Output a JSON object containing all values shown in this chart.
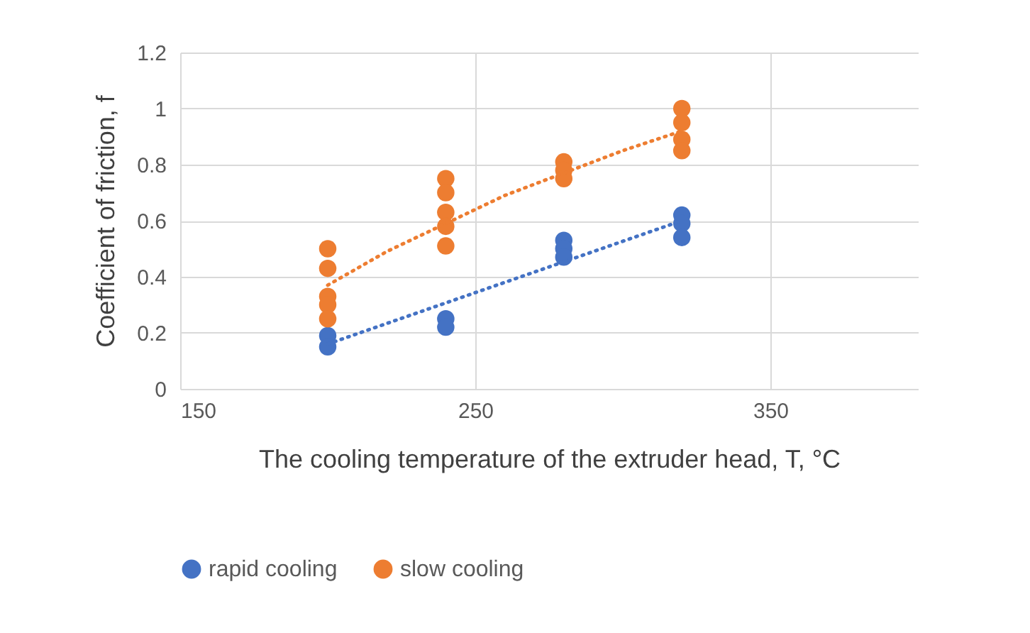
{
  "chart_data": {
    "type": "scatter",
    "xlabel": "The cooling temperature of the extruder head, T, °C",
    "ylabel": "Coefficient of friction, f",
    "xlim": [
      150,
      400
    ],
    "xticks": [
      150,
      250,
      350
    ],
    "ylim": [
      0,
      1.2
    ],
    "yticks": [
      0,
      0.2,
      0.4,
      0.6,
      0.8,
      1,
      1.2
    ],
    "grid": true,
    "legend": "bottom",
    "series": [
      {
        "name": "rapid cooling",
        "color": "#4472c4",
        "marker": "circle",
        "x": [
          200,
          200,
          240,
          240,
          280,
          280,
          280,
          320,
          320,
          320
        ],
        "values": [
          0.19,
          0.15,
          0.25,
          0.22,
          0.53,
          0.5,
          0.47,
          0.62,
          0.59,
          0.54
        ]
      },
      {
        "name": "slow cooling",
        "color": "#ed7d31",
        "marker": "circle",
        "x": [
          200,
          200,
          200,
          200,
          200,
          240,
          240,
          240,
          240,
          240,
          280,
          280,
          280,
          320,
          320,
          320,
          320
        ],
        "values": [
          0.5,
          0.43,
          0.33,
          0.3,
          0.25,
          0.75,
          0.7,
          0.63,
          0.58,
          0.51,
          0.81,
          0.78,
          0.75,
          1,
          0.95,
          0.89,
          0.85
        ]
      },
      {
        "type": "line",
        "color": "#4472c4",
        "line_style": "dotted",
        "marker": "none",
        "x": [
          200,
          320
        ],
        "values": [
          0.16,
          0.6
        ]
      },
      {
        "type": "line",
        "color": "#ed7d31",
        "line_style": "dotted",
        "marker": "none",
        "x": [
          200,
          220,
          240,
          260,
          280,
          300,
          320
        ],
        "values": [
          0.37,
          0.49,
          0.59,
          0.69,
          0.77,
          0.85,
          0.92
        ]
      }
    ]
  }
}
